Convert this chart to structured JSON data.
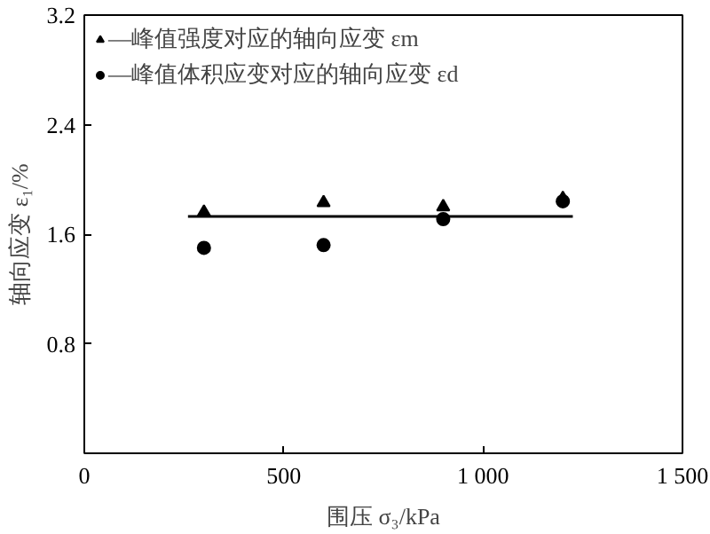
{
  "chart_data": {
    "type": "scatter",
    "xlabel": "围压 σ₃/kPa",
    "ylabel": "轴向应变 ε₁/%",
    "xlim": [
      0,
      1500
    ],
    "ylim": [
      0,
      3.2
    ],
    "xticks": [
      0,
      500,
      {
        "value": 1000,
        "label": "1 000"
      },
      {
        "value": 1500,
        "label": "1 500"
      }
    ],
    "yticks": [
      0.8,
      1.6,
      2.4,
      3.2
    ],
    "x": [
      300,
      600,
      900,
      1200
    ],
    "series": [
      {
        "name": "—峰值强度对应的轴向应变 εm",
        "color": "#000000",
        "marker": "triangle",
        "values": [
          1.76,
          1.83,
          1.8,
          1.86
        ]
      },
      {
        "name": "—峰值体积应变对应的轴向应变 εd",
        "color": "#000000",
        "marker": "circle",
        "values": [
          1.5,
          1.52,
          1.71,
          1.84
        ]
      },
      {
        "type": "line",
        "color": "#000000",
        "x": [
          260,
          1225
        ],
        "values": [
          1.73,
          1.73
        ],
        "marker": "none",
        "line_style": "solid"
      }
    ],
    "grid": false,
    "legend": "top left"
  }
}
